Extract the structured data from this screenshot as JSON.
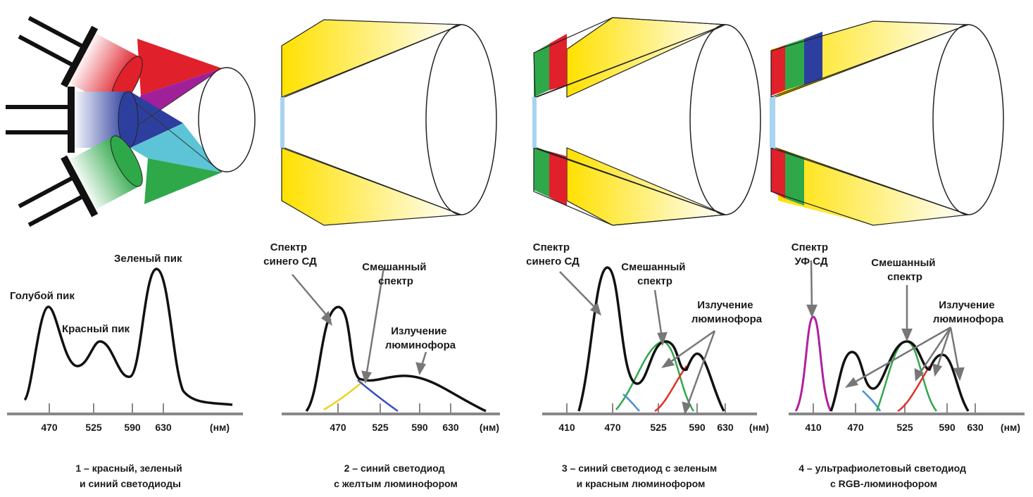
{
  "panels": [
    {
      "ticks": [
        "470",
        "525",
        "590",
        "630",
        "(нм)"
      ],
      "labels": {
        "blue_peak": "Голубой пик",
        "red_peak": "Красный пик",
        "green_peak": "Зеленый пик"
      },
      "caption": [
        "1 – красный, зеленый",
        "и синий светодиоды"
      ]
    },
    {
      "ticks": [
        "470",
        "525",
        "590",
        "630",
        "(нм)"
      ],
      "labels": {
        "blue_spectrum": [
          "Спектр",
          "синего СД"
        ],
        "mixed": [
          "Смешанный",
          "спектр"
        ],
        "phosphor": [
          "Излучение",
          "люминофора"
        ]
      },
      "caption": [
        "2 – синий светодиод",
        "с желтым люминофором"
      ]
    },
    {
      "ticks": [
        "410",
        "470",
        "525",
        "590",
        "630",
        "(нм)"
      ],
      "labels": {
        "blue_spectrum": [
          "Спектр",
          "синего СД"
        ],
        "mixed": [
          "Смешанный",
          "спектр"
        ],
        "phosphor": [
          "Излучение",
          "люминофора"
        ]
      },
      "caption": [
        "3 – синий светодиод с зеленым",
        "и красным люминофором"
      ]
    },
    {
      "ticks": [
        "410",
        "470",
        "525",
        "590",
        "630",
        "(нм)"
      ],
      "labels": {
        "uv_spectrum": [
          "Спектр",
          "УФ СД"
        ],
        "mixed": [
          "Смешанный",
          "спектр"
        ],
        "phosphor": [
          "Излучение",
          "люминофора"
        ]
      },
      "caption": [
        "4 – ультрафиолетовый светодиод",
        "с RGB-люминофором"
      ]
    }
  ],
  "colors": {
    "red": "#e0202a",
    "green": "#2fa84a",
    "blue": "#2d3f9e",
    "cyan": "#5cc4d6",
    "purple": "#a0209a",
    "yellow": "#ffe100",
    "chip": "#a8d4f0"
  }
}
